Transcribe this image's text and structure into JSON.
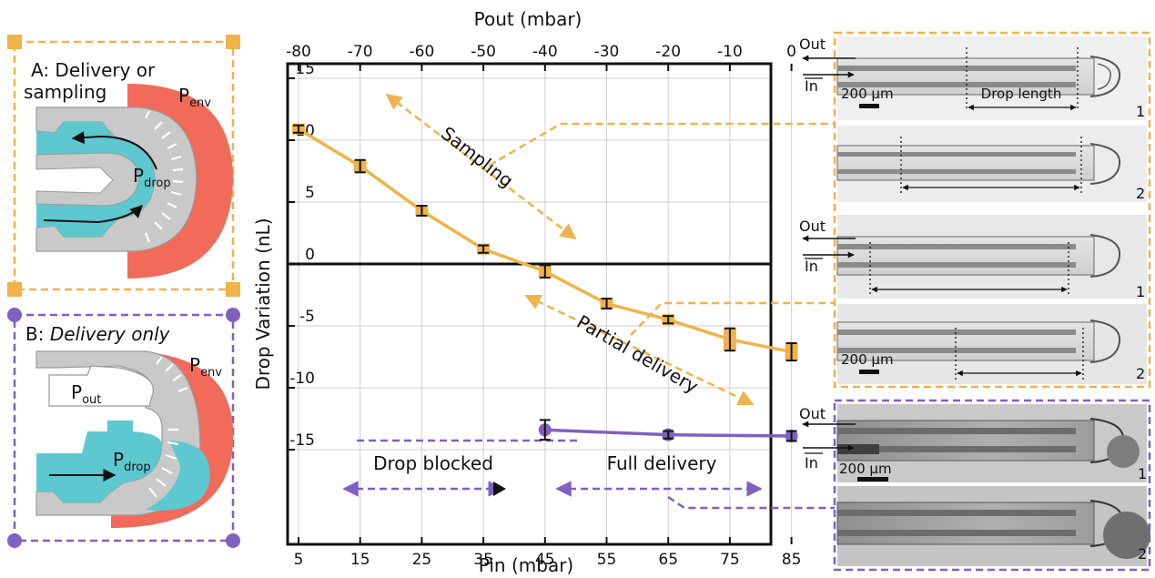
{
  "colors": {
    "orange": "#f0b24a",
    "orange_dark": "#e8a634",
    "purple": "#8060c0",
    "teal": "#5dc8cf",
    "red": "#f26a5a",
    "gray": "#c9c9c9",
    "gray_dark": "#9a9a9a"
  },
  "panels": {
    "a": {
      "title_line1": "A: Delivery or",
      "title_line2": "sampling",
      "p_env": "P",
      "p_env_sub": "env",
      "p_drop": "P",
      "p_drop_sub": "drop"
    },
    "b": {
      "title_prefix": "B: ",
      "title_italic": "Delivery only",
      "p_env": "P",
      "p_env_sub": "env",
      "p_out": "P",
      "p_out_sub": "out",
      "p_drop": "P",
      "p_drop_sub": "drop"
    }
  },
  "chart_data": {
    "type": "line",
    "xlabel": "Pin (mbar)",
    "x2label": "Pout (mbar)",
    "ylabel": "Drop Variation (nL)",
    "x_ticks": [
      5,
      15,
      25,
      35,
      45,
      55,
      65,
      75,
      85
    ],
    "x2_ticks": [
      -80,
      -70,
      -60,
      -50,
      -40,
      -30,
      -20,
      -10,
      0
    ],
    "y_ticks": [
      15,
      10,
      5,
      0,
      -5,
      -10,
      -15
    ],
    "xlim": [
      0,
      85
    ],
    "ylim": [
      -20,
      15
    ],
    "grid": true,
    "series": [
      {
        "color": "#f0b24a",
        "marker": "square",
        "x": [
          5,
          15,
          25,
          35,
          45,
          55,
          65,
          75,
          85
        ],
        "y": [
          10.9,
          7.9,
          4.3,
          1.2,
          -0.6,
          -3.2,
          -4.5,
          -6.1,
          -7.1
        ],
        "err": [
          0.3,
          0.5,
          0.4,
          0.3,
          0.5,
          0.4,
          0.3,
          0.9,
          0.7
        ]
      },
      {
        "color": "#8060c0",
        "marker": "circle",
        "x": [
          45,
          65,
          85
        ],
        "y": [
          -13.4,
          -13.8,
          -13.9
        ],
        "err": [
          0.8,
          0.3,
          0.4
        ]
      }
    ],
    "annotations": [
      "Sampling",
      "Partial delivery",
      "Drop blocked",
      "Full delivery"
    ]
  },
  "micrographs": {
    "out_label": "Out",
    "in_label": "In",
    "scale_label": "200 μm",
    "drop_length_label": "Drop length",
    "frame_numbers": [
      "1",
      "2",
      "1",
      "2",
      "1",
      "2"
    ]
  }
}
